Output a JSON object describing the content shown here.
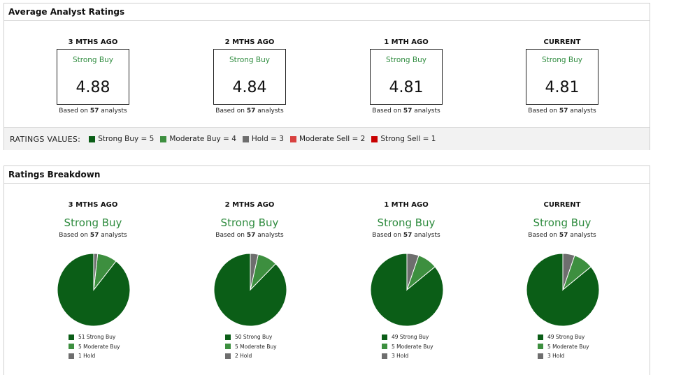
{
  "avg_panel": {
    "title": "Average Analyst Ratings",
    "periods": [
      {
        "head": "3 MTHS AGO",
        "rating": "Strong Buy",
        "value": "4.88",
        "based_prefix": "Based on",
        "analysts": "57",
        "based_suffix": "analysts"
      },
      {
        "head": "2 MTHS AGO",
        "rating": "Strong Buy",
        "value": "4.84",
        "based_prefix": "Based on",
        "analysts": "57",
        "based_suffix": "analysts"
      },
      {
        "head": "1 MTH AGO",
        "rating": "Strong Buy",
        "value": "4.81",
        "based_prefix": "Based on",
        "analysts": "57",
        "based_suffix": "analysts"
      },
      {
        "head": "CURRENT",
        "rating": "Strong Buy",
        "value": "4.81",
        "based_prefix": "Based on",
        "analysts": "57",
        "based_suffix": "analysts"
      }
    ],
    "ratings_values": {
      "title": "RATINGS VALUES:",
      "items": [
        {
          "label": "Strong Buy = 5",
          "color": "#0b5e17"
        },
        {
          "label": "Moderate Buy = 4",
          "color": "#3d8f3f"
        },
        {
          "label": "Hold = 3",
          "color": "#6e6e6e"
        },
        {
          "label": "Moderate Sell = 2",
          "color": "#d8413f"
        },
        {
          "label": "Strong Sell = 1",
          "color": "#c80000"
        }
      ]
    }
  },
  "breakdown_panel": {
    "title": "Ratings Breakdown",
    "periods": [
      {
        "head": "3 MTHS AGO",
        "summary": "Strong Buy",
        "based_prefix": "Based on",
        "analysts": "57",
        "based_suffix": "analysts",
        "legend": [
          "51 Strong Buy",
          "5 Moderate Buy",
          "1 Hold"
        ]
      },
      {
        "head": "2 MTHS AGO",
        "summary": "Strong Buy",
        "based_prefix": "Based on",
        "analysts": "57",
        "based_suffix": "analysts",
        "legend": [
          "50 Strong Buy",
          "5 Moderate Buy",
          "2 Hold"
        ]
      },
      {
        "head": "1 MTH AGO",
        "summary": "Strong Buy",
        "based_prefix": "Based on",
        "analysts": "57",
        "based_suffix": "analysts",
        "legend": [
          "49 Strong Buy",
          "5 Moderate Buy",
          "3 Hold"
        ]
      },
      {
        "head": "CURRENT",
        "summary": "Strong Buy",
        "based_prefix": "Based on",
        "analysts": "57",
        "based_suffix": "analysts",
        "legend": [
          "49 Strong Buy",
          "5 Moderate Buy",
          "3 Hold"
        ]
      }
    ],
    "colors": {
      "strong_buy": "#0b5e17",
      "moderate_buy": "#3d8f3f",
      "hold": "#6e6e6e"
    }
  },
  "chart_data": [
    {
      "type": "pie",
      "title": "3 MTHS AGO",
      "categories": [
        "Strong Buy",
        "Moderate Buy",
        "Hold"
      ],
      "values": [
        51,
        5,
        1
      ],
      "colors": [
        "#0b5e17",
        "#3d8f3f",
        "#6e6e6e"
      ]
    },
    {
      "type": "pie",
      "title": "2 MTHS AGO",
      "categories": [
        "Strong Buy",
        "Moderate Buy",
        "Hold"
      ],
      "values": [
        50,
        5,
        2
      ],
      "colors": [
        "#0b5e17",
        "#3d8f3f",
        "#6e6e6e"
      ]
    },
    {
      "type": "pie",
      "title": "1 MTH AGO",
      "categories": [
        "Strong Buy",
        "Moderate Buy",
        "Hold"
      ],
      "values": [
        49,
        5,
        3
      ],
      "colors": [
        "#0b5e17",
        "#3d8f3f",
        "#6e6e6e"
      ]
    },
    {
      "type": "pie",
      "title": "CURRENT",
      "categories": [
        "Strong Buy",
        "Moderate Buy",
        "Hold"
      ],
      "values": [
        49,
        5,
        3
      ],
      "colors": [
        "#0b5e17",
        "#3d8f3f",
        "#6e6e6e"
      ]
    }
  ]
}
